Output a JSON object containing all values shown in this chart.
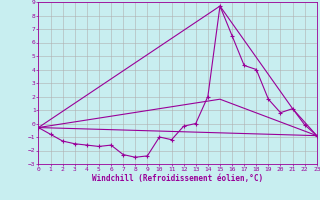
{
  "xlabel": "Windchill (Refroidissement éolien,°C)",
  "bg_color": "#c8eef0",
  "grid_color": "#b0b0b0",
  "line_color": "#990099",
  "xlim": [
    0,
    23
  ],
  "ylim": [
    -3,
    9
  ],
  "xticks": [
    0,
    1,
    2,
    3,
    4,
    5,
    6,
    7,
    8,
    9,
    10,
    11,
    12,
    13,
    14,
    15,
    16,
    17,
    18,
    19,
    20,
    21,
    22,
    23
  ],
  "yticks": [
    -3,
    -2,
    -1,
    0,
    1,
    2,
    3,
    4,
    5,
    6,
    7,
    8,
    9
  ],
  "line1_x": [
    0,
    1,
    2,
    3,
    4,
    5,
    6,
    7,
    8,
    9,
    10,
    11,
    12,
    13,
    14,
    15,
    16,
    17,
    18,
    19,
    20,
    21,
    22,
    23
  ],
  "line1_y": [
    -0.3,
    -0.8,
    -1.3,
    -1.5,
    -1.6,
    -1.7,
    -1.6,
    -2.3,
    -2.5,
    -2.4,
    -1.0,
    -1.2,
    -0.2,
    0.0,
    2.0,
    8.7,
    6.5,
    4.3,
    4.0,
    1.8,
    0.8,
    1.1,
    -0.1,
    -0.9
  ],
  "line2_x": [
    0,
    23
  ],
  "line2_y": [
    -0.3,
    -0.9
  ],
  "line3_x": [
    0,
    15,
    23
  ],
  "line3_y": [
    -0.3,
    1.8,
    -0.9
  ],
  "line4_x": [
    0,
    15,
    21,
    23
  ],
  "line4_y": [
    -0.3,
    8.7,
    1.1,
    -0.9
  ],
  "tick_fontsize": 4.5,
  "xlabel_fontsize": 5.5,
  "line_width": 0.8,
  "marker_size": 2.5
}
